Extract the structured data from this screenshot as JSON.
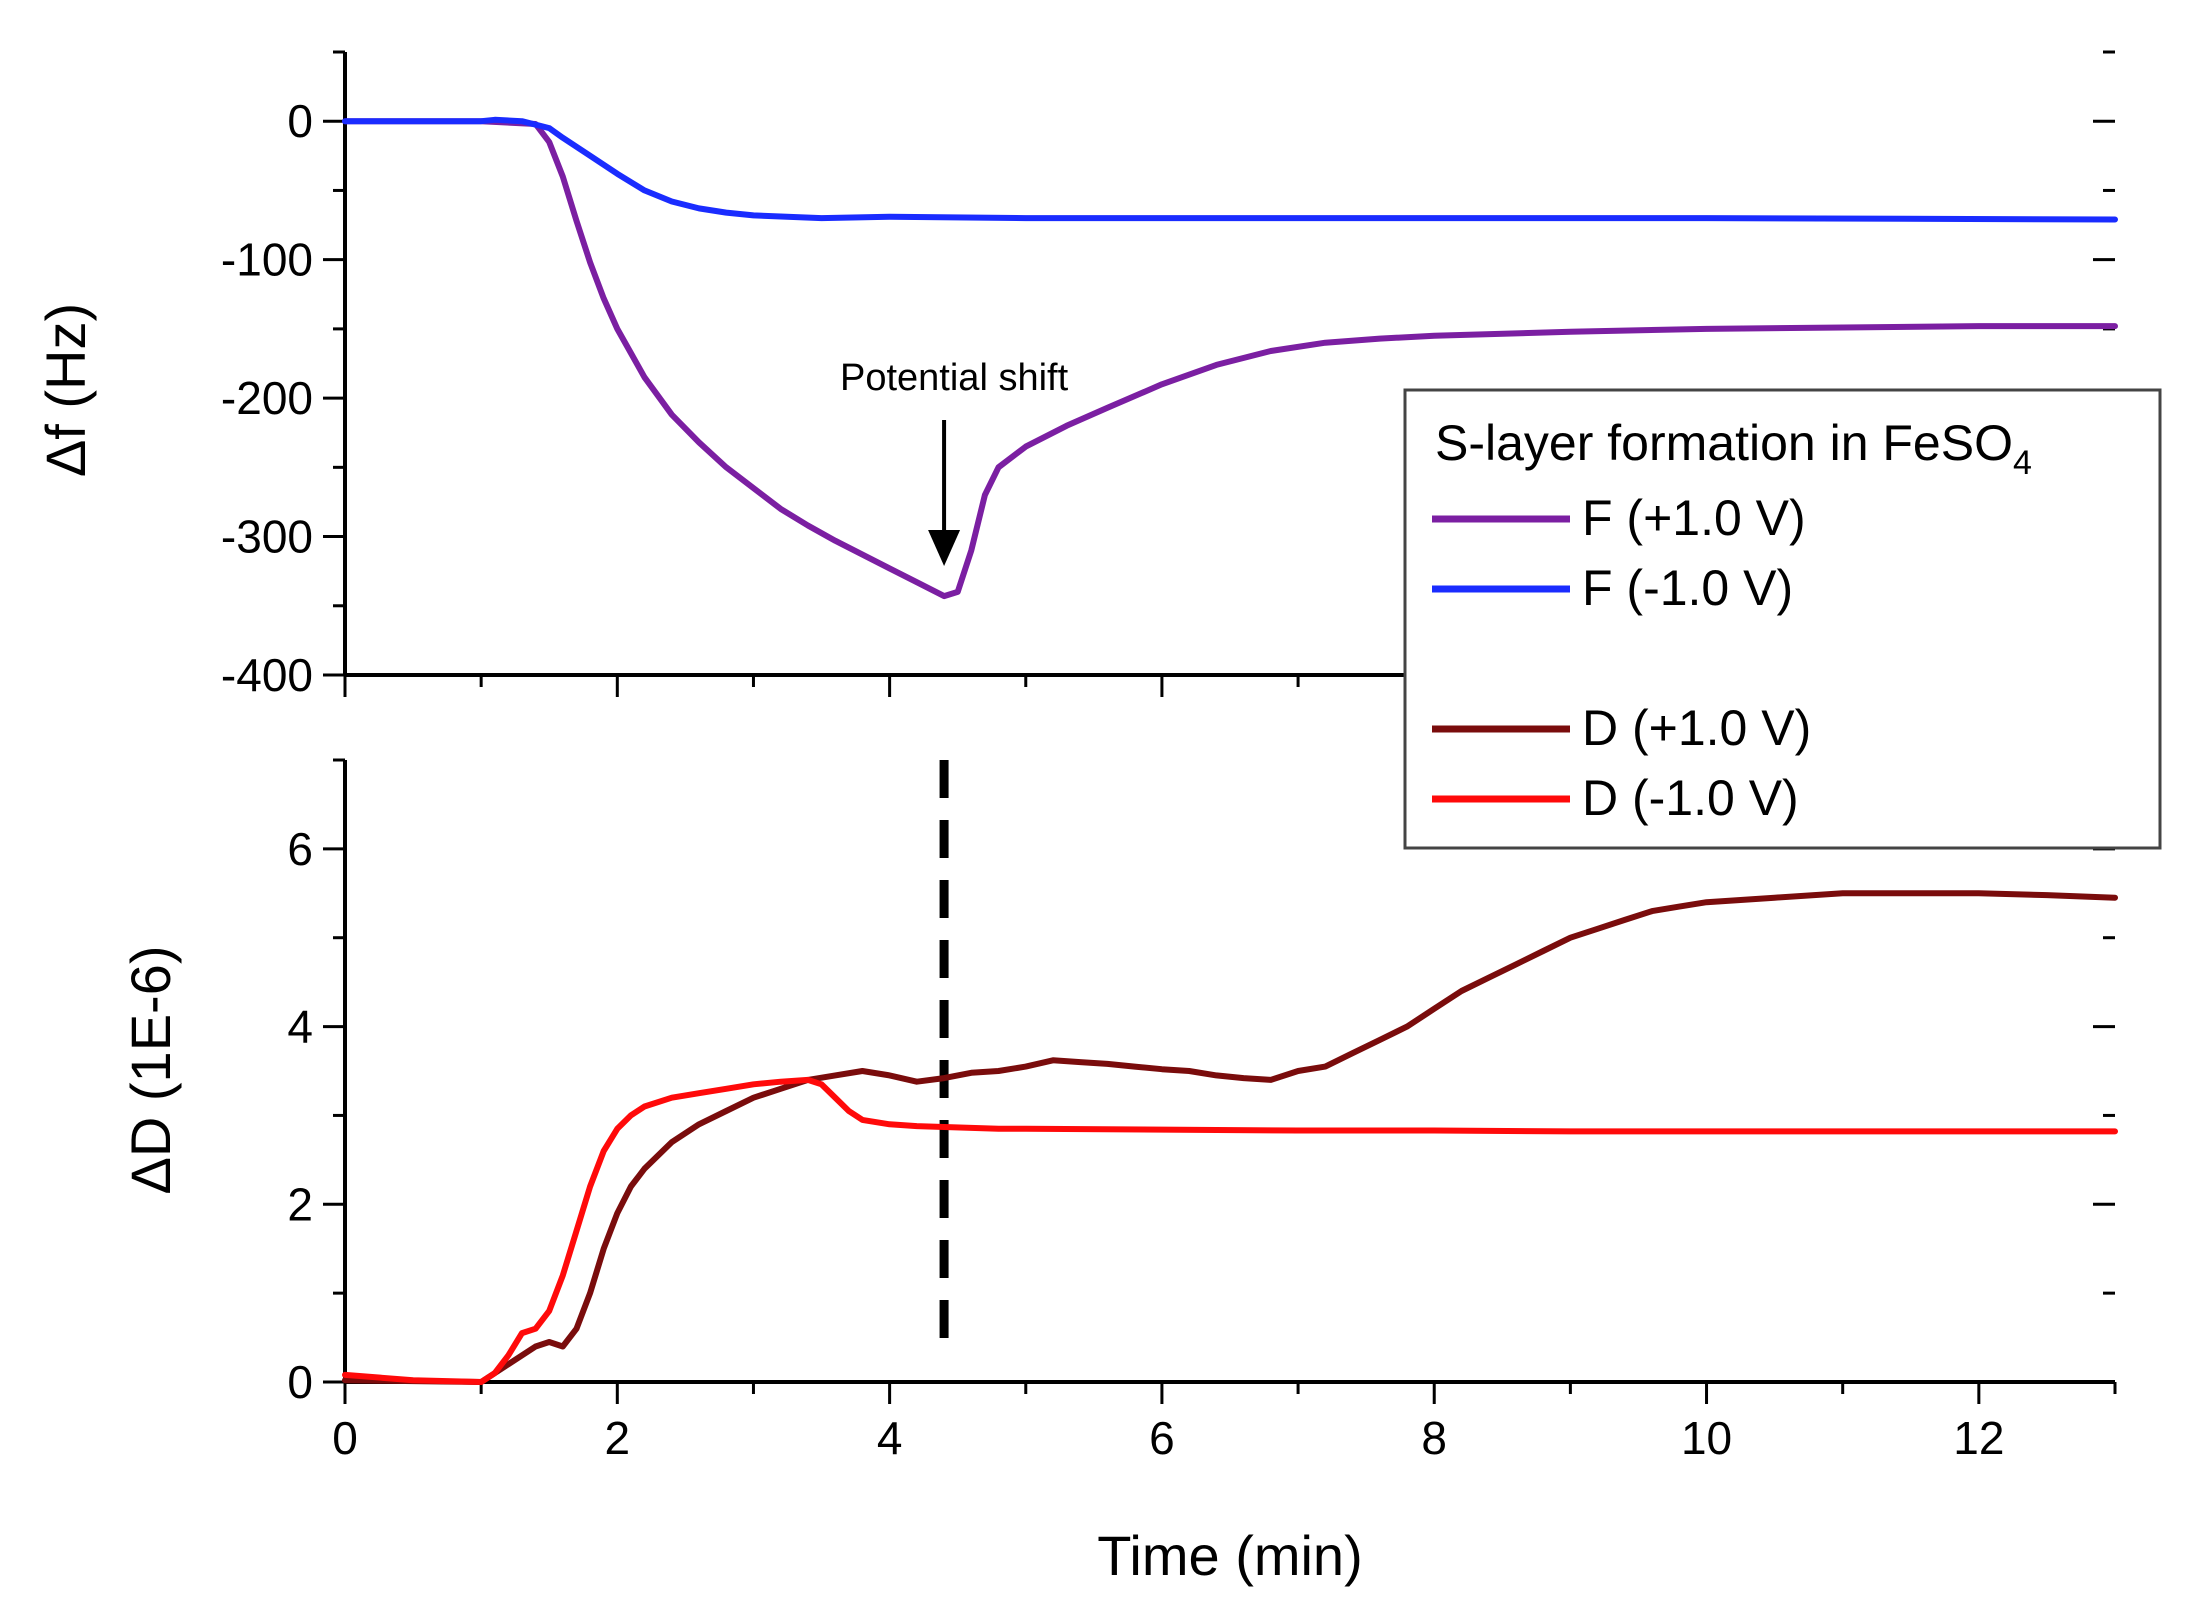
{
  "chart_data": [
    {
      "type": "line",
      "panel": "top",
      "ylabel": "Δf (Hz)",
      "xlim": [
        0,
        13
      ],
      "ylim": [
        -400,
        50
      ],
      "yticks": [
        0,
        -100,
        -200,
        -300,
        -400
      ],
      "ytick_labels": [
        "0",
        "-100",
        "-200",
        "-300",
        "-400"
      ],
      "annotation": {
        "text": "Potential shift",
        "x": 4.4,
        "y": -330
      },
      "series": [
        {
          "name": "F (+1.0 V)",
          "color": "#7b1fa2",
          "x": [
            0,
            1.0,
            1.4,
            1.5,
            1.6,
            1.7,
            1.8,
            1.9,
            2.0,
            2.2,
            2.4,
            2.6,
            2.8,
            3.0,
            3.2,
            3.4,
            3.6,
            3.8,
            4.0,
            4.2,
            4.4,
            4.5,
            4.6,
            4.7,
            4.8,
            5.0,
            5.3,
            5.6,
            6.0,
            6.4,
            6.8,
            7.2,
            7.6,
            8.0,
            9.0,
            10.0,
            11.0,
            12.0,
            13.0
          ],
          "y": [
            0,
            0,
            -2,
            -15,
            -40,
            -72,
            -102,
            -128,
            -150,
            -185,
            -212,
            -232,
            -250,
            -265,
            -280,
            -292,
            -303,
            -313,
            -323,
            -333,
            -343,
            -340,
            -310,
            -270,
            -250,
            -235,
            -220,
            -207,
            -190,
            -176,
            -166,
            -160,
            -157,
            -155,
            -152,
            -150,
            -149,
            -148,
            -148
          ]
        },
        {
          "name": "F (-1.0 V)",
          "color": "#1a2cff",
          "x": [
            0,
            1.0,
            1.1,
            1.3,
            1.5,
            1.6,
            1.8,
            2.0,
            2.2,
            2.4,
            2.6,
            2.8,
            3.0,
            3.5,
            4.0,
            5.0,
            6.0,
            8.0,
            10.0,
            13.0
          ],
          "y": [
            0,
            0,
            1,
            0,
            -5,
            -12,
            -25,
            -38,
            -50,
            -58,
            -63,
            -66,
            -68,
            -70,
            -69,
            -70,
            -70,
            -70,
            -70,
            -71
          ]
        }
      ]
    },
    {
      "type": "line",
      "panel": "bottom",
      "xlabel": "Time (min)",
      "ylabel": "ΔD (1E-6)",
      "xlim": [
        0,
        13
      ],
      "ylim": [
        0,
        7
      ],
      "xticks": [
        0,
        2,
        4,
        6,
        8,
        10,
        12
      ],
      "xtick_labels": [
        "0",
        "2",
        "4",
        "6",
        "8",
        "10",
        "12"
      ],
      "yticks": [
        0,
        2,
        4,
        6
      ],
      "ytick_labels": [
        "0",
        "2",
        "4",
        "6"
      ],
      "vline_x": 4.4,
      "series": [
        {
          "name": "D (+1.0 V)",
          "color": "#7a0c0c",
          "x": [
            0,
            0.5,
            1.0,
            1.2,
            1.4,
            1.5,
            1.6,
            1.7,
            1.8,
            1.9,
            2.0,
            2.1,
            2.2,
            2.4,
            2.6,
            2.8,
            3.0,
            3.2,
            3.4,
            3.6,
            3.8,
            4.0,
            4.2,
            4.4,
            4.6,
            4.8,
            5.0,
            5.2,
            5.4,
            5.6,
            5.8,
            6.0,
            6.2,
            6.4,
            6.6,
            6.8,
            7.0,
            7.2,
            7.4,
            7.6,
            7.8,
            8.0,
            8.2,
            8.4,
            8.6,
            8.8,
            9.0,
            9.2,
            9.4,
            9.6,
            9.8,
            10.0,
            10.5,
            11.0,
            11.5,
            12.0,
            12.5,
            13.0
          ],
          "y": [
            0.02,
            0.01,
            0.0,
            0.2,
            0.4,
            0.45,
            0.4,
            0.6,
            1.0,
            1.5,
            1.9,
            2.2,
            2.4,
            2.7,
            2.9,
            3.05,
            3.2,
            3.3,
            3.4,
            3.45,
            3.5,
            3.45,
            3.38,
            3.42,
            3.48,
            3.5,
            3.55,
            3.62,
            3.6,
            3.58,
            3.55,
            3.52,
            3.5,
            3.45,
            3.42,
            3.4,
            3.5,
            3.55,
            3.7,
            3.85,
            4.0,
            4.2,
            4.4,
            4.55,
            4.7,
            4.85,
            5.0,
            5.1,
            5.2,
            5.3,
            5.35,
            5.4,
            5.45,
            5.5,
            5.5,
            5.5,
            5.48,
            5.45
          ]
        },
        {
          "name": "D (-1.0 V)",
          "color": "#ff0a0a",
          "x": [
            0,
            0.5,
            1.0,
            1.1,
            1.2,
            1.3,
            1.4,
            1.5,
            1.6,
            1.7,
            1.8,
            1.9,
            2.0,
            2.1,
            2.2,
            2.4,
            2.6,
            2.8,
            3.0,
            3.2,
            3.4,
            3.5,
            3.6,
            3.7,
            3.8,
            4.0,
            4.2,
            4.4,
            4.8,
            5.0,
            6.0,
            7.0,
            8.0,
            9.0,
            10.0,
            11.0,
            12.0,
            13.0
          ],
          "y": [
            0.08,
            0.02,
            0.0,
            0.1,
            0.3,
            0.55,
            0.6,
            0.8,
            1.2,
            1.7,
            2.2,
            2.6,
            2.85,
            3.0,
            3.1,
            3.2,
            3.25,
            3.3,
            3.35,
            3.38,
            3.4,
            3.35,
            3.2,
            3.05,
            2.95,
            2.9,
            2.88,
            2.87,
            2.85,
            2.85,
            2.84,
            2.83,
            2.83,
            2.82,
            2.82,
            2.82,
            2.82,
            2.82
          ]
        }
      ]
    }
  ],
  "legend": {
    "title_prefix": "S-layer formation in FeSO",
    "title_subscript": "4",
    "entries": [
      {
        "label": "F (+1.0 V)",
        "color": "#7b1fa2"
      },
      {
        "label": "F (-1.0 V)",
        "color": "#1a2cff"
      },
      {
        "label": "D (+1.0 V)",
        "color": "#7a0c0c"
      },
      {
        "label": "D (-1.0 V)",
        "color": "#ff0a0a"
      }
    ]
  }
}
